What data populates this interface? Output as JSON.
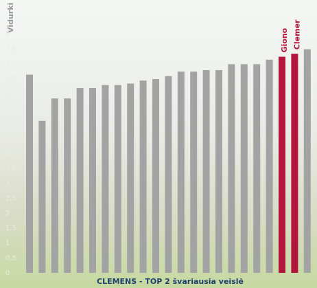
{
  "chart_data": {
    "type": "bar",
    "y_label": "Vidurki",
    "caption": "CLEMENS - TOP 2 švariausia veislė",
    "categories": [
      null,
      null,
      null,
      null,
      null,
      null,
      null,
      null,
      null,
      null,
      null,
      null,
      null,
      null,
      null,
      null,
      null,
      null,
      null,
      null,
      "Giono",
      "Clemer",
      null
    ],
    "values": [
      6.65,
      5.1,
      5.85,
      5.85,
      6.2,
      6.2,
      6.3,
      6.3,
      6.35,
      6.45,
      6.5,
      6.6,
      6.75,
      6.75,
      6.8,
      6.8,
      7.0,
      7.0,
      7.0,
      7.15,
      7.25,
      7.35,
      7.5
    ],
    "colors": [
      "#a3a3a3",
      "#a3a3a3",
      "#a3a3a3",
      "#a3a3a3",
      "#a3a3a3",
      "#a3a3a3",
      "#a3a3a3",
      "#a3a3a3",
      "#a3a3a3",
      "#a3a3a3",
      "#a3a3a3",
      "#a3a3a3",
      "#a3a3a3",
      "#a3a3a3",
      "#a3a3a3",
      "#a3a3a3",
      "#a3a3a3",
      "#a3a3a3",
      "#a3a3a3",
      "#a3a3a3",
      "#b3163c",
      "#b3163c",
      "#a3a3a3"
    ],
    "label_color": "#b3163c",
    "ylim": [
      0,
      8
    ],
    "yticks": [
      0,
      {
        "value": 0.5,
        "label": "0,5"
      },
      1,
      {
        "value": 1.5,
        "label": "1,5"
      },
      2,
      {
        "value": 2.5,
        "label": "2,5"
      },
      3,
      {
        "value": 3.5,
        "label": "3,5"
      },
      4,
      {
        "value": 4.5,
        "label": "4,5"
      },
      5,
      {
        "value": 5.5,
        "label": "5,5"
      },
      6,
      {
        "value": 6.5,
        "label": "6,5"
      },
      7,
      {
        "value": 7.5,
        "label": "7,5"
      },
      8
    ],
    "grid": false
  }
}
